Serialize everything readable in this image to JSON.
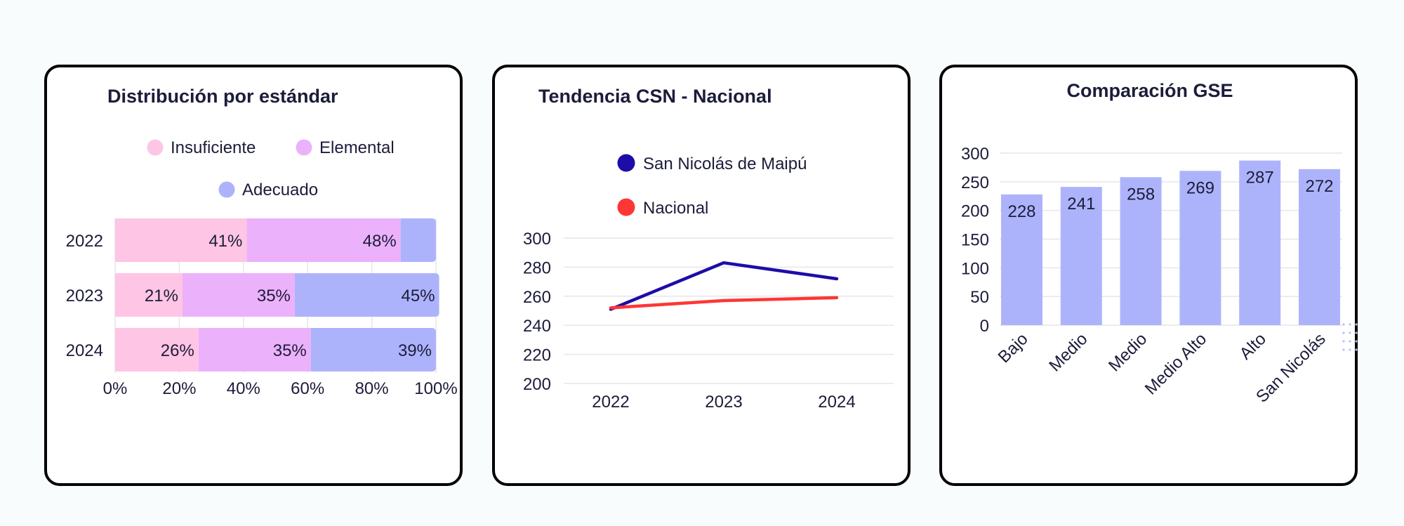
{
  "charts": [
    {
      "title": "Distribución por estándar",
      "legend": [
        {
          "label": "Insuficiente",
          "color": "#ffc5e4"
        },
        {
          "label": "Elemental",
          "color": "#ecb1fb"
        },
        {
          "label": "Adecuado",
          "color": "#adb3fb"
        }
      ]
    },
    {
      "title": "Tendencia CSN - Nacional",
      "legend": [
        {
          "label": "San Nicolás de Maipú",
          "color": "#1e0ca8"
        },
        {
          "label": "Nacional",
          "color": "#fe3636"
        }
      ]
    },
    {
      "title": "Comparación GSE"
    }
  ],
  "chart_data": [
    {
      "type": "bar",
      "orientation": "horizontal",
      "stacked": true,
      "title": "Distribución por estándar",
      "categories": [
        "2022",
        "2023",
        "2024"
      ],
      "series": [
        {
          "name": "Insuficiente",
          "values": [
            41,
            21,
            26
          ],
          "labels": [
            "41%",
            "21%",
            "26%"
          ]
        },
        {
          "name": "Elemental",
          "values": [
            48,
            35,
            35
          ],
          "labels": [
            "48%",
            "35%",
            "35%"
          ]
        },
        {
          "name": "Adecuado",
          "values": [
            11,
            45,
            39
          ],
          "labels": [
            "",
            "45%",
            "39%"
          ]
        }
      ],
      "xlim": [
        0,
        100
      ],
      "xticks": [
        "0%",
        "20%",
        "40%",
        "60%",
        "80%",
        "100%"
      ],
      "legend_position": "top",
      "grid": true
    },
    {
      "type": "line",
      "title": "Tendencia CSN - Nacional",
      "x": [
        "2022",
        "2023",
        "2024"
      ],
      "series": [
        {
          "name": "San Nicolás de Maipú",
          "values": [
            251,
            283,
            272
          ]
        },
        {
          "name": "Nacional",
          "values": [
            252,
            257,
            259
          ]
        }
      ],
      "ylim": [
        200,
        300
      ],
      "yticks": [
        "200",
        "220",
        "240",
        "260",
        "280",
        "300"
      ],
      "legend_position": "top",
      "grid": true
    },
    {
      "type": "bar",
      "title": "Comparación GSE",
      "categories": [
        "Bajo",
        "Medio",
        "Medio",
        "Medio Alto",
        "Alto",
        "San Nicolás"
      ],
      "values": [
        228,
        241,
        258,
        269,
        287,
        272
      ],
      "labels": [
        "228",
        "241",
        "258",
        "269",
        "287",
        "272"
      ],
      "ylim": [
        0,
        300
      ],
      "yticks": [
        "0",
        "50",
        "100",
        "150",
        "200",
        "250",
        "300"
      ],
      "grid": true
    }
  ]
}
